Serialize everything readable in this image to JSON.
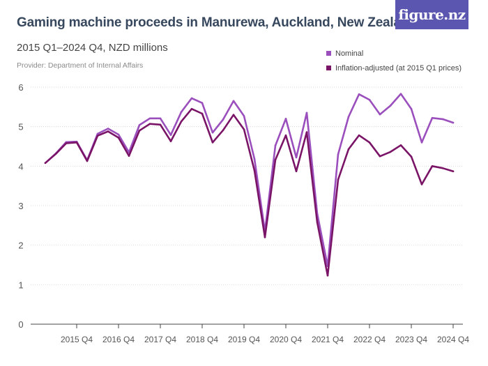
{
  "title": "Gaming machine proceeds in Manurewa, Auckland, New Zealand",
  "subtitle": "2015 Q1–2024 Q4, NZD millions",
  "provider": "Provider: Department of Internal Affairs",
  "logo": "figure.nz",
  "chart_data": {
    "type": "line",
    "x_unit": "quarter",
    "x": [
      "2015 Q1",
      "2015 Q2",
      "2015 Q3",
      "2015 Q4",
      "2016 Q1",
      "2016 Q2",
      "2016 Q3",
      "2016 Q4",
      "2017 Q1",
      "2017 Q2",
      "2017 Q3",
      "2017 Q4",
      "2018 Q1",
      "2018 Q2",
      "2018 Q3",
      "2018 Q4",
      "2019 Q1",
      "2019 Q2",
      "2019 Q3",
      "2019 Q4",
      "2020 Q1",
      "2020 Q2",
      "2020 Q3",
      "2020 Q4",
      "2021 Q1",
      "2021 Q2",
      "2021 Q3",
      "2021 Q4",
      "2022 Q1",
      "2022 Q2",
      "2022 Q3",
      "2022 Q4",
      "2023 Q1",
      "2023 Q2",
      "2023 Q3",
      "2023 Q4",
      "2024 Q1",
      "2024 Q2",
      "2024 Q3",
      "2024 Q4"
    ],
    "x_ticks": [
      "2015 Q4",
      "2016 Q4",
      "2017 Q4",
      "2018 Q4",
      "2019 Q4",
      "2020 Q4",
      "2021 Q4",
      "2022 Q4",
      "2023 Q4",
      "2024 Q4"
    ],
    "y_ticks": [
      0,
      1,
      2,
      3,
      4,
      5,
      6
    ],
    "ylim": [
      0,
      6
    ],
    "grid": true,
    "legend_position": "top-right",
    "series": [
      {
        "name": "Nominal",
        "color": "#9a4fbd",
        "values": [
          4.08,
          4.32,
          4.61,
          4.62,
          4.15,
          4.82,
          4.95,
          4.8,
          4.35,
          5.04,
          5.21,
          5.21,
          4.79,
          5.37,
          5.72,
          5.6,
          4.85,
          5.18,
          5.65,
          5.27,
          4.18,
          2.35,
          4.52,
          5.2,
          4.22,
          5.35,
          2.8,
          1.47,
          4.3,
          5.25,
          5.82,
          5.68,
          5.31,
          5.53,
          5.83,
          5.45,
          4.6,
          5.22,
          5.19,
          5.1
        ]
      },
      {
        "name": "Inflation-adjusted (at 2015 Q1 prices)",
        "color": "#7a1466",
        "values": [
          4.08,
          4.31,
          4.58,
          4.6,
          4.13,
          4.77,
          4.88,
          4.72,
          4.26,
          4.9,
          5.07,
          5.05,
          4.63,
          5.13,
          5.45,
          5.33,
          4.6,
          4.91,
          5.3,
          4.93,
          3.89,
          2.2,
          4.16,
          4.78,
          3.87,
          4.86,
          2.58,
          1.23,
          3.66,
          4.43,
          4.78,
          4.6,
          4.25,
          4.36,
          4.53,
          4.24,
          3.54,
          4.0,
          3.95,
          3.87
        ]
      }
    ]
  }
}
